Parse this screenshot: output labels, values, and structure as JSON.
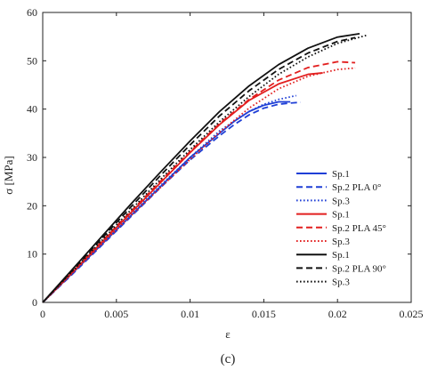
{
  "chart_data": {
    "type": "line",
    "xlabel": "ε",
    "ylabel": "σ [MPa]",
    "caption": "(c)",
    "xlim": [
      0,
      0.025
    ],
    "ylim": [
      0,
      60
    ],
    "xticks": [
      0,
      0.005,
      0.01,
      0.015,
      0.02,
      0.025
    ],
    "xtick_labels": [
      "0",
      "0.005",
      "0.01",
      "0.015",
      "0.02",
      "0.025"
    ],
    "yticks": [
      0,
      10,
      20,
      30,
      40,
      50,
      60
    ],
    "ytick_labels": [
      "0",
      "10",
      "20",
      "30",
      "40",
      "50",
      "60"
    ],
    "grid": false,
    "legend_position": "bottom-right",
    "series": [
      {
        "name": "Sp.1",
        "group": "PLA 0°",
        "color": "#1f3fd6",
        "dash": "solid",
        "x": [
          0,
          0.002,
          0.004,
          0.006,
          0.008,
          0.01,
          0.012,
          0.013,
          0.014,
          0.015,
          0.016,
          0.0168
        ],
        "y": [
          0,
          6,
          12,
          18,
          24,
          30,
          35,
          37.5,
          39.5,
          40.8,
          41.5,
          41.5
        ]
      },
      {
        "name": "Sp.2 PLA 0°",
        "group": "PLA 0°",
        "color": "#1f3fd6",
        "dash": "dashed",
        "x": [
          0,
          0.002,
          0.004,
          0.006,
          0.008,
          0.01,
          0.012,
          0.013,
          0.014,
          0.015,
          0.016,
          0.017,
          0.0175
        ],
        "y": [
          0,
          5.8,
          11.8,
          17.8,
          23.8,
          29.5,
          34.5,
          36.8,
          38.8,
          40.2,
          41,
          41.3,
          41.4
        ]
      },
      {
        "name": "Sp.3",
        "group": "PLA 0°",
        "color": "#1f3fd6",
        "dash": "dotted",
        "x": [
          0,
          0.002,
          0.004,
          0.006,
          0.008,
          0.01,
          0.012,
          0.014,
          0.015,
          0.016,
          0.0172
        ],
        "y": [
          0,
          6.1,
          12.2,
          18.3,
          24.2,
          30,
          35.5,
          39.5,
          41,
          42,
          42.8
        ]
      },
      {
        "name": "Sp.1",
        "group": "PLA 45°",
        "color": "#e21f1f",
        "dash": "solid",
        "x": [
          0,
          0.002,
          0.004,
          0.006,
          0.008,
          0.01,
          0.012,
          0.014,
          0.016,
          0.018,
          0.019
        ],
        "y": [
          0,
          6.2,
          12.4,
          18.6,
          24.8,
          31,
          36.8,
          41.8,
          45.2,
          47.2,
          47.5
        ]
      },
      {
        "name": "Sp.2 PLA 45°",
        "group": "PLA 45°",
        "color": "#e21f1f",
        "dash": "dashed",
        "x": [
          0,
          0.002,
          0.004,
          0.006,
          0.008,
          0.01,
          0.012,
          0.014,
          0.016,
          0.018,
          0.02,
          0.0212
        ],
        "y": [
          0,
          6.3,
          12.6,
          18.9,
          25.1,
          31.2,
          37,
          42,
          46,
          48.6,
          49.8,
          49.6
        ]
      },
      {
        "name": "Sp.3",
        "group": "PLA 45°",
        "color": "#e21f1f",
        "dash": "dotted",
        "x": [
          0,
          0.002,
          0.004,
          0.006,
          0.008,
          0.01,
          0.012,
          0.014,
          0.016,
          0.018,
          0.02,
          0.0212
        ],
        "y": [
          0,
          6,
          12,
          18,
          23.8,
          29.6,
          35.2,
          40.2,
          44.2,
          46.8,
          48.2,
          48.5
        ]
      },
      {
        "name": "Sp.1",
        "group": "PLA 90°",
        "color": "#111111",
        "dash": "solid",
        "x": [
          0,
          0.002,
          0.004,
          0.006,
          0.008,
          0.01,
          0.012,
          0.014,
          0.016,
          0.018,
          0.02,
          0.0215
        ],
        "y": [
          0,
          6.8,
          13.6,
          20.4,
          27,
          33.4,
          39.5,
          44.8,
          49.2,
          52.6,
          54.9,
          55.6
        ]
      },
      {
        "name": "Sp.2 PLA 90°",
        "group": "PLA 90°",
        "color": "#111111",
        "dash": "dashed",
        "x": [
          0,
          0.002,
          0.004,
          0.006,
          0.008,
          0.01,
          0.012,
          0.014,
          0.016,
          0.018,
          0.02,
          0.0212
        ],
        "y": [
          0,
          6.6,
          13.2,
          19.8,
          26.3,
          32.6,
          38.6,
          43.8,
          48.2,
          51.6,
          54,
          54.8
        ]
      },
      {
        "name": "Sp.3",
        "group": "PLA 90°",
        "color": "#111111",
        "dash": "dotted",
        "x": [
          0,
          0.002,
          0.004,
          0.006,
          0.008,
          0.01,
          0.012,
          0.014,
          0.016,
          0.018,
          0.02,
          0.022
        ],
        "y": [
          0,
          6.4,
          12.8,
          19.2,
          25.5,
          31.6,
          37.4,
          42.6,
          47.2,
          50.8,
          53.6,
          55.3
        ]
      }
    ]
  }
}
